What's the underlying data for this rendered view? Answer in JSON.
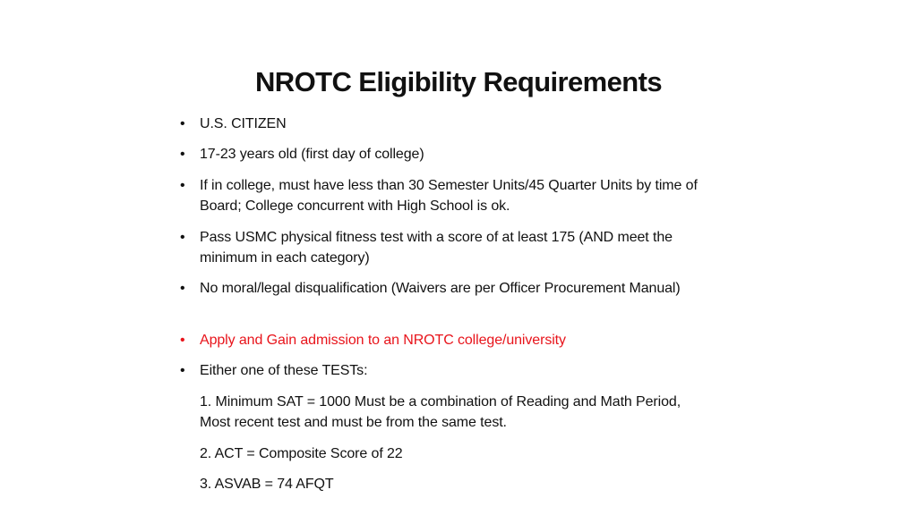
{
  "slide": {
    "title": "NROTC Eligibility Requirements",
    "accent_color": "#e8141b",
    "bullets": [
      {
        "text": "U.S. CITIZEN"
      },
      {
        "text": "17-23 years old (first day of college)"
      },
      {
        "text": "If in college, must have less than 30 Semester Units/45 Quarter Units by time of Board; College concurrent with High School is ok."
      },
      {
        "text": "Pass USMC physical fitness test with a score of at least 175 (AND meet the minimum in each category)"
      },
      {
        "text": "No moral/legal disqualification (Waivers are per Officer Procurement Manual)"
      },
      {
        "text": "Apply and Gain admission to an NROTC college/university"
      },
      {
        "text": "Either one of these TESTs:"
      }
    ],
    "tests": [
      {
        "text": "1.  Minimum SAT = 1000  Must be a combination of Reading and Math Period, Most recent test and must be from the same test."
      },
      {
        "text": "2.  ACT = Composite Score of 22"
      },
      {
        "text": "3.  ASVAB = 74 AFQT"
      }
    ]
  }
}
